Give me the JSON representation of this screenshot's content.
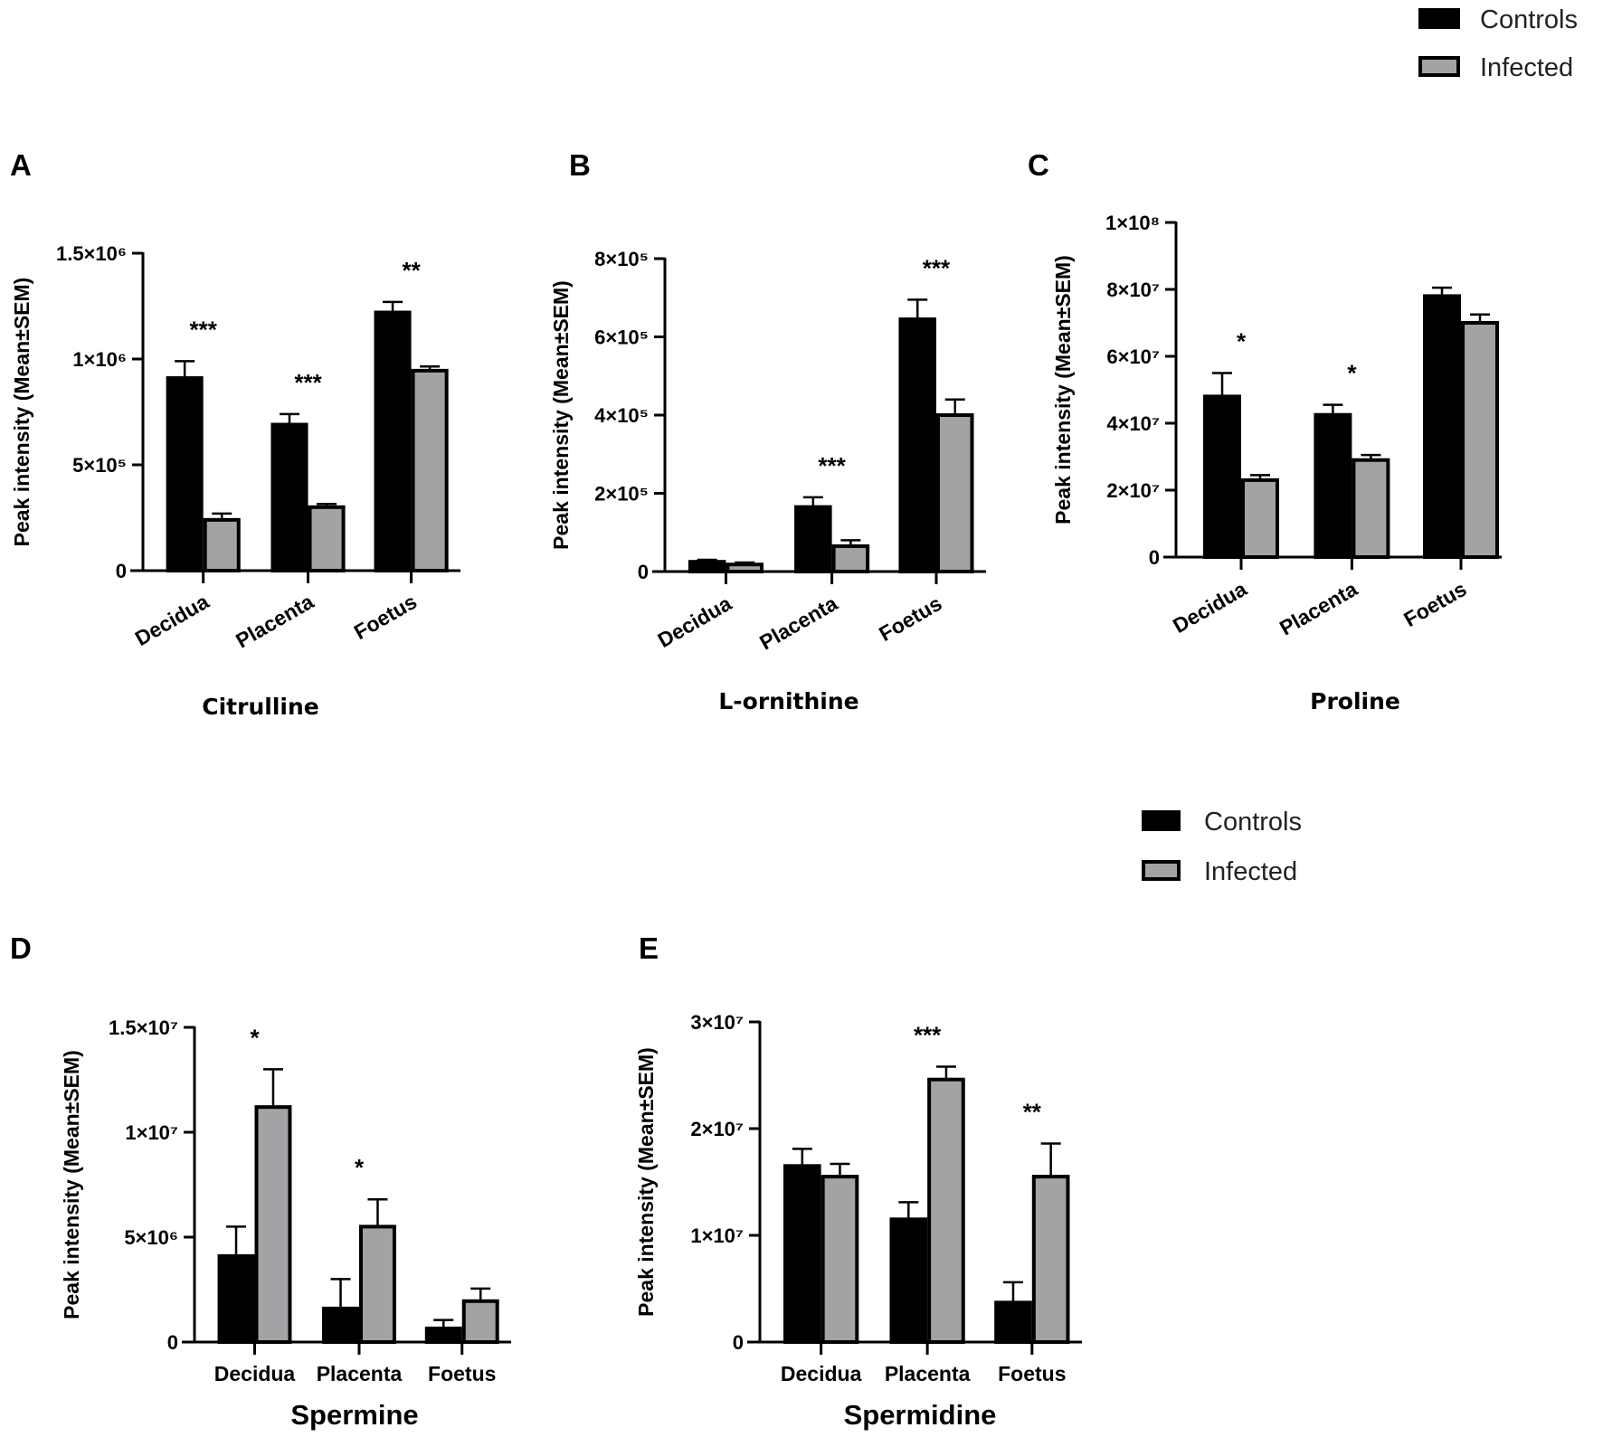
{
  "legends": [
    {
      "items": [
        {
          "label": "Controls",
          "color": "#000000"
        },
        {
          "label": "Infected",
          "color": "#a3a3a6"
        }
      ]
    },
    {
      "items": [
        {
          "label": "Controls",
          "color": "#000000"
        },
        {
          "label": "Infected",
          "color": "#a3a3a6"
        }
      ]
    }
  ],
  "chart_data": [
    {
      "panel": "A",
      "type": "bar",
      "title": "Citrulline",
      "ylabel": "Peak intensity (Mean±SEM)",
      "categories": [
        "Decidua",
        "Placenta",
        "Foetus"
      ],
      "ylim": [
        0,
        1500000
      ],
      "yticks": [
        {
          "value": 0,
          "label": "0"
        },
        {
          "value": 500000,
          "label": "5×10⁵"
        },
        {
          "value": 1000000,
          "label": "1×10⁶"
        },
        {
          "value": 1500000,
          "label": "1.5×10⁶"
        }
      ],
      "series": [
        {
          "name": "Controls",
          "values": [
            910000,
            690000,
            1220000
          ],
          "errors": [
            80000,
            50000,
            50000
          ]
        },
        {
          "name": "Infected",
          "values": [
            240000,
            300000,
            945000
          ],
          "errors": [
            30000,
            15000,
            20000
          ]
        }
      ],
      "significance": [
        "***",
        "***",
        "**"
      ]
    },
    {
      "panel": "B",
      "type": "bar",
      "title": "L-ornithine",
      "ylabel": "Peak intensity (Mean±SEM)",
      "categories": [
        "Decidua",
        "Placenta",
        "Foetus"
      ],
      "ylim": [
        0,
        800000
      ],
      "yticks": [
        {
          "value": 0,
          "label": "0"
        },
        {
          "value": 200000,
          "label": "2×10⁵"
        },
        {
          "value": 400000,
          "label": "4×10⁵"
        },
        {
          "value": 600000,
          "label": "6×10⁵"
        },
        {
          "value": 800000,
          "label": "8×10⁵"
        }
      ],
      "series": [
        {
          "name": "Controls",
          "values": [
            25000,
            165000,
            645000
          ],
          "errors": [
            5000,
            25000,
            50000
          ]
        },
        {
          "name": "Infected",
          "values": [
            18000,
            65000,
            400000
          ],
          "errors": [
            5000,
            15000,
            40000
          ]
        }
      ],
      "significance": [
        "",
        "***",
        "***"
      ]
    },
    {
      "panel": "C",
      "type": "bar",
      "title": "Proline",
      "ylabel": "Peak intensity (Mean±SEM)",
      "categories": [
        "Decidua",
        "Placenta",
        "Foetus"
      ],
      "ylim": [
        0,
        100000000
      ],
      "yticks": [
        {
          "value": 0,
          "label": "0"
        },
        {
          "value": 20000000,
          "label": "2×10⁷"
        },
        {
          "value": 40000000,
          "label": "4×10⁷"
        },
        {
          "value": 60000000,
          "label": "6×10⁷"
        },
        {
          "value": 80000000,
          "label": "8×10⁷"
        },
        {
          "value": 100000000,
          "label": "1×10⁸"
        }
      ],
      "series": [
        {
          "name": "Controls",
          "values": [
            48000000,
            42500000,
            78000000
          ],
          "errors": [
            7000000,
            3000000,
            2500000
          ]
        },
        {
          "name": "Infected",
          "values": [
            23000000,
            29000000,
            70000000
          ],
          "errors": [
            1500000,
            1500000,
            2500000
          ]
        }
      ],
      "significance": [
        "*",
        "*",
        ""
      ]
    },
    {
      "panel": "D",
      "type": "bar",
      "title": "Spermine",
      "ylabel": "Peak intensity (Mean±SEM)",
      "categories": [
        "Decidua",
        "Placenta",
        "Foetus"
      ],
      "ylim": [
        0,
        15000000
      ],
      "yticks": [
        {
          "value": 0,
          "label": "0"
        },
        {
          "value": 5000000,
          "label": "5×10⁶"
        },
        {
          "value": 10000000,
          "label": "1×10⁷"
        },
        {
          "value": 15000000,
          "label": "1.5×10⁷"
        }
      ],
      "series": [
        {
          "name": "Controls",
          "values": [
            4100000,
            1600000,
            650000
          ],
          "errors": [
            1400000,
            1400000,
            400000
          ]
        },
        {
          "name": "Infected",
          "values": [
            11200000,
            5500000,
            1950000
          ],
          "errors": [
            1800000,
            1300000,
            600000
          ]
        }
      ],
      "significance": [
        "*",
        "*",
        ""
      ]
    },
    {
      "panel": "E",
      "type": "bar",
      "title": "Spermidine",
      "ylabel": "Peak intensity (Mean±SEM)",
      "categories": [
        "Decidua",
        "Placenta",
        "Foetus"
      ],
      "ylim": [
        0,
        30000000
      ],
      "yticks": [
        {
          "value": 0,
          "label": "0"
        },
        {
          "value": 10000000,
          "label": "1×10⁷"
        },
        {
          "value": 20000000,
          "label": "2×10⁷"
        },
        {
          "value": 30000000,
          "label": "3×10⁷"
        }
      ],
      "series": [
        {
          "name": "Controls",
          "values": [
            16500000,
            11500000,
            3700000
          ],
          "errors": [
            1600000,
            1600000,
            1900000
          ]
        },
        {
          "name": "Infected",
          "values": [
            15500000,
            24600000,
            15500000
          ],
          "errors": [
            1200000,
            1200000,
            3100000
          ]
        }
      ],
      "significance": [
        "",
        "***",
        "**"
      ]
    }
  ]
}
